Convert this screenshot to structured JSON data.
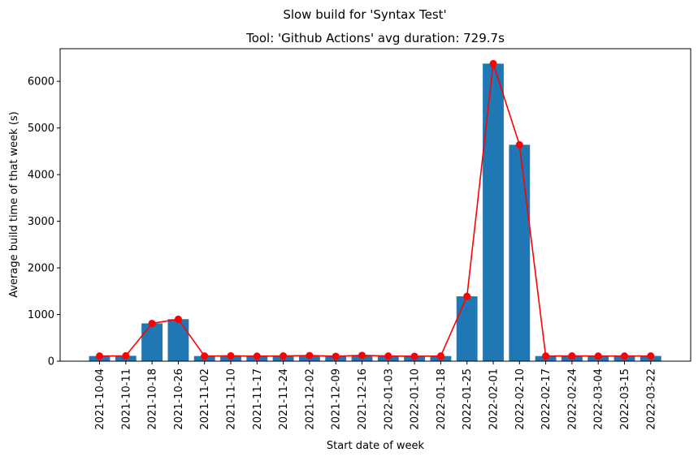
{
  "chart_data": {
    "type": "bar",
    "suptitle": "Slow build for 'Syntax Test'",
    "title": "Tool: 'Github Actions' avg duration: 729.7s",
    "xlabel": "Start date of week",
    "ylabel": "Average build time of that week (s)",
    "ylim": [
      0,
      6700
    ],
    "yticks": [
      0,
      1000,
      2000,
      3000,
      4000,
      5000,
      6000
    ],
    "grid": false,
    "categories": [
      "2021-10-04",
      "2021-10-11",
      "2021-10-18",
      "2021-10-26",
      "2021-11-02",
      "2021-11-10",
      "2021-11-17",
      "2021-11-24",
      "2021-12-02",
      "2021-12-09",
      "2021-12-16",
      "2022-01-03",
      "2022-01-10",
      "2022-01-18",
      "2022-01-25",
      "2022-02-01",
      "2022-02-10",
      "2022-02-17",
      "2022-02-24",
      "2022-03-04",
      "2022-03-15",
      "2022-03-22"
    ],
    "series": [
      {
        "kind": "bar",
        "color": "#1f77b4",
        "values": [
          110,
          115,
          810,
          900,
          110,
          115,
          108,
          112,
          120,
          105,
          125,
          110,
          105,
          110,
          1390,
          6380,
          4640,
          110,
          112,
          110,
          110,
          112
        ]
      },
      {
        "kind": "line",
        "marker": "circle",
        "color": "#ff0000",
        "values": [
          110,
          115,
          810,
          900,
          110,
          115,
          108,
          112,
          120,
          105,
          125,
          110,
          105,
          110,
          1390,
          6380,
          4640,
          110,
          112,
          110,
          110,
          112
        ]
      }
    ]
  }
}
